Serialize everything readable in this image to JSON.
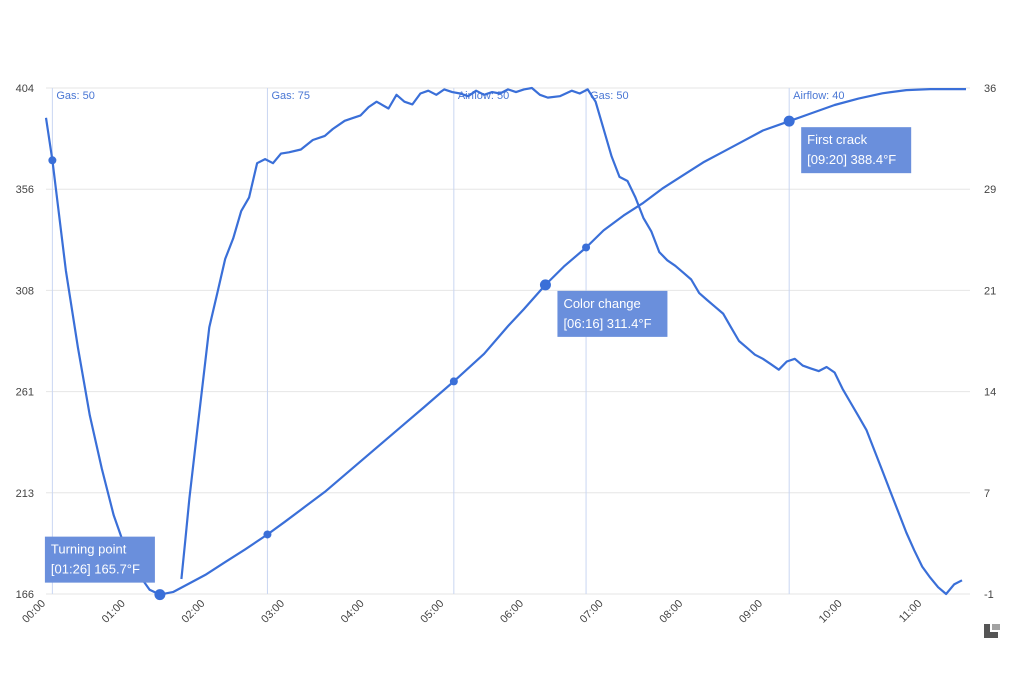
{
  "chart_data": {
    "type": "line",
    "colors": {
      "line": "#3a6fd8",
      "grid": "#e6e6e6",
      "event_line": "#c9d6f2",
      "annotation_bg": "#6a8fdc"
    },
    "x_ticks": [
      "00:00",
      "01:00",
      "02:00",
      "03:00",
      "04:00",
      "05:00",
      "06:00",
      "07:00",
      "08:00",
      "09:00",
      "10:00",
      "11:00"
    ],
    "xlim": [
      0,
      11.6
    ],
    "y_left_ticks": [
      "404",
      "356",
      "308",
      "261",
      "213",
      "166"
    ],
    "y_right_ticks": [
      "36",
      "29",
      "21",
      "14",
      "7",
      "-1"
    ],
    "ylim_left": [
      166,
      404
    ],
    "ylim_right": [
      -1,
      36
    ],
    "grid": true,
    "events": [
      {
        "label": "Gas: 50",
        "t": 0.08
      },
      {
        "label": "Gas: 75",
        "t": 2.78
      },
      {
        "label": "Airflow: 50",
        "t": 5.12
      },
      {
        "label": "Gas: 50",
        "t": 6.78
      },
      {
        "label": "Airflow: 40",
        "t": 9.33
      }
    ],
    "annotations": [
      {
        "title": "Turning point",
        "detail": "[01:26] 165.7°F",
        "t": 1.43,
        "y": 165.7,
        "box": "above-left"
      },
      {
        "title": "Color change",
        "detail": "[06:16] 311.4°F",
        "t": 6.27,
        "y": 311.4,
        "box": "below-right"
      },
      {
        "title": "First crack",
        "detail": "[09:20] 388.4°F",
        "t": 9.33,
        "y": 388.4,
        "box": "below-right"
      }
    ],
    "series": [
      {
        "axis": "left",
        "markers": [
          0.08,
          1.43,
          2.78,
          5.12,
          6.27,
          6.78,
          9.33
        ],
        "points": [
          [
            0,
            390
          ],
          [
            0.08,
            370
          ],
          [
            0.25,
            318
          ],
          [
            0.4,
            282
          ],
          [
            0.55,
            250
          ],
          [
            0.7,
            225
          ],
          [
            0.85,
            203
          ],
          [
            1.0,
            187
          ],
          [
            1.15,
            176
          ],
          [
            1.3,
            168
          ],
          [
            1.43,
            165.7
          ],
          [
            1.6,
            167
          ],
          [
            1.8,
            171
          ],
          [
            2.0,
            175
          ],
          [
            2.25,
            181
          ],
          [
            2.5,
            187
          ],
          [
            2.78,
            194
          ],
          [
            3.0,
            200
          ],
          [
            3.25,
            207
          ],
          [
            3.5,
            214
          ],
          [
            3.75,
            222
          ],
          [
            4.0,
            230
          ],
          [
            4.25,
            238
          ],
          [
            4.5,
            246
          ],
          [
            4.75,
            254
          ],
          [
            5.12,
            266
          ],
          [
            5.5,
            279
          ],
          [
            5.8,
            292
          ],
          [
            6.0,
            300
          ],
          [
            6.27,
            311.4
          ],
          [
            6.5,
            320
          ],
          [
            6.78,
            329
          ],
          [
            7.0,
            337
          ],
          [
            7.25,
            344
          ],
          [
            7.5,
            350
          ],
          [
            7.75,
            357
          ],
          [
            8.0,
            363
          ],
          [
            8.25,
            369
          ],
          [
            8.5,
            374
          ],
          [
            8.75,
            379
          ],
          [
            9.0,
            384
          ],
          [
            9.33,
            388.4
          ],
          [
            9.6,
            392
          ],
          [
            9.9,
            396
          ],
          [
            10.2,
            399
          ],
          [
            10.5,
            401.5
          ],
          [
            10.8,
            403
          ],
          [
            11.1,
            403.5
          ],
          [
            11.4,
            403.5
          ],
          [
            11.55,
            403.5
          ]
        ]
      },
      {
        "axis": "right",
        "markers": [],
        "points": [
          [
            1.7,
            0.1
          ],
          [
            1.75,
            3
          ],
          [
            1.8,
            6
          ],
          [
            1.9,
            11
          ],
          [
            2.0,
            16
          ],
          [
            2.05,
            18.5
          ],
          [
            2.15,
            21
          ],
          [
            2.25,
            23.5
          ],
          [
            2.35,
            25
          ],
          [
            2.45,
            27
          ],
          [
            2.55,
            28
          ],
          [
            2.65,
            30.5
          ],
          [
            2.75,
            30.8
          ],
          [
            2.85,
            30.5
          ],
          [
            2.95,
            31.2
          ],
          [
            3.05,
            31.3
          ],
          [
            3.2,
            31.5
          ],
          [
            3.35,
            32.2
          ],
          [
            3.5,
            32.5
          ],
          [
            3.6,
            33
          ],
          [
            3.75,
            33.6
          ],
          [
            3.85,
            33.8
          ],
          [
            3.95,
            34
          ],
          [
            4.05,
            34.6
          ],
          [
            4.15,
            35
          ],
          [
            4.3,
            34.5
          ],
          [
            4.4,
            35.5
          ],
          [
            4.5,
            35
          ],
          [
            4.6,
            34.8
          ],
          [
            4.7,
            35.6
          ],
          [
            4.8,
            35.8
          ],
          [
            4.9,
            35.5
          ],
          [
            5.0,
            35.9
          ],
          [
            5.1,
            35.7
          ],
          [
            5.2,
            35.6
          ],
          [
            5.3,
            35.4
          ],
          [
            5.4,
            35.8
          ],
          [
            5.5,
            35.5
          ],
          [
            5.6,
            35.7
          ],
          [
            5.7,
            35.6
          ],
          [
            5.8,
            35.9
          ],
          [
            5.9,
            35.7
          ],
          [
            6.0,
            35.9
          ],
          [
            6.1,
            36
          ],
          [
            6.2,
            35.5
          ],
          [
            6.3,
            35.3
          ],
          [
            6.45,
            35.4
          ],
          [
            6.6,
            35.8
          ],
          [
            6.7,
            35.6
          ],
          [
            6.8,
            35.9
          ],
          [
            6.9,
            35
          ],
          [
            7.0,
            33
          ],
          [
            7.1,
            31
          ],
          [
            7.2,
            29.5
          ],
          [
            7.3,
            29.2
          ],
          [
            7.4,
            28
          ],
          [
            7.5,
            26.5
          ],
          [
            7.6,
            25.5
          ],
          [
            7.7,
            24
          ],
          [
            7.8,
            23.4
          ],
          [
            7.9,
            23
          ],
          [
            8.0,
            22.5
          ],
          [
            8.1,
            22
          ],
          [
            8.2,
            21
          ],
          [
            8.3,
            20.5
          ],
          [
            8.4,
            20
          ],
          [
            8.5,
            19.5
          ],
          [
            8.6,
            18.5
          ],
          [
            8.7,
            17.5
          ],
          [
            8.8,
            17
          ],
          [
            8.9,
            16.5
          ],
          [
            9.0,
            16.2
          ],
          [
            9.1,
            15.8
          ],
          [
            9.2,
            15.4
          ],
          [
            9.3,
            16
          ],
          [
            9.4,
            16.2
          ],
          [
            9.5,
            15.7
          ],
          [
            9.6,
            15.5
          ],
          [
            9.7,
            15.3
          ],
          [
            9.8,
            15.6
          ],
          [
            9.9,
            15.2
          ],
          [
            10.0,
            14
          ],
          [
            10.1,
            13
          ],
          [
            10.2,
            12
          ],
          [
            10.3,
            11
          ],
          [
            10.4,
            9.5
          ],
          [
            10.5,
            8
          ],
          [
            10.6,
            6.5
          ],
          [
            10.7,
            5
          ],
          [
            10.8,
            3.5
          ],
          [
            10.9,
            2.2
          ],
          [
            11.0,
            1
          ],
          [
            11.1,
            0.2
          ],
          [
            11.2,
            -0.5
          ],
          [
            11.3,
            -1
          ],
          [
            11.4,
            -0.3
          ],
          [
            11.5,
            0
          ]
        ]
      }
    ]
  }
}
